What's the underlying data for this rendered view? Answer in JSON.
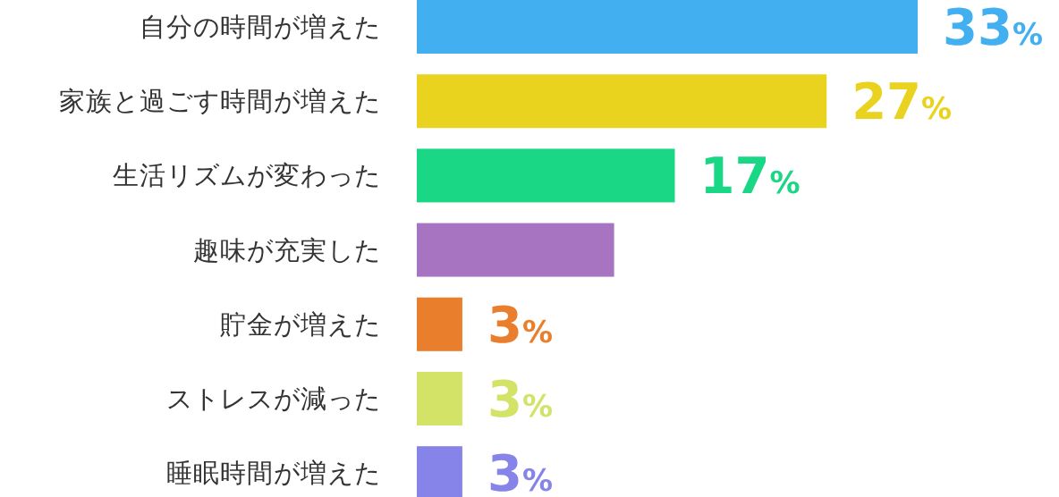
{
  "chart_data": {
    "type": "bar",
    "orientation": "horizontal",
    "categories": [
      "自分の時間が増えた",
      "家族と過ごす時間が増えた",
      "生活リズムが変わった",
      "趣味が充実した",
      "貯金が増えた",
      "ストレスが減った",
      "睡眠時間が増えた"
    ],
    "values": [
      33,
      27,
      17,
      13,
      3,
      3,
      3
    ],
    "colors": [
      "#42b0f0",
      "#e9d31f",
      "#19d785",
      "#a674c0",
      "#e97e2d",
      "#d2e368",
      "#8684e8"
    ],
    "value_labels": [
      "33%",
      "27%",
      "17%",
      null,
      "3%",
      "3%",
      "3%"
    ]
  }
}
